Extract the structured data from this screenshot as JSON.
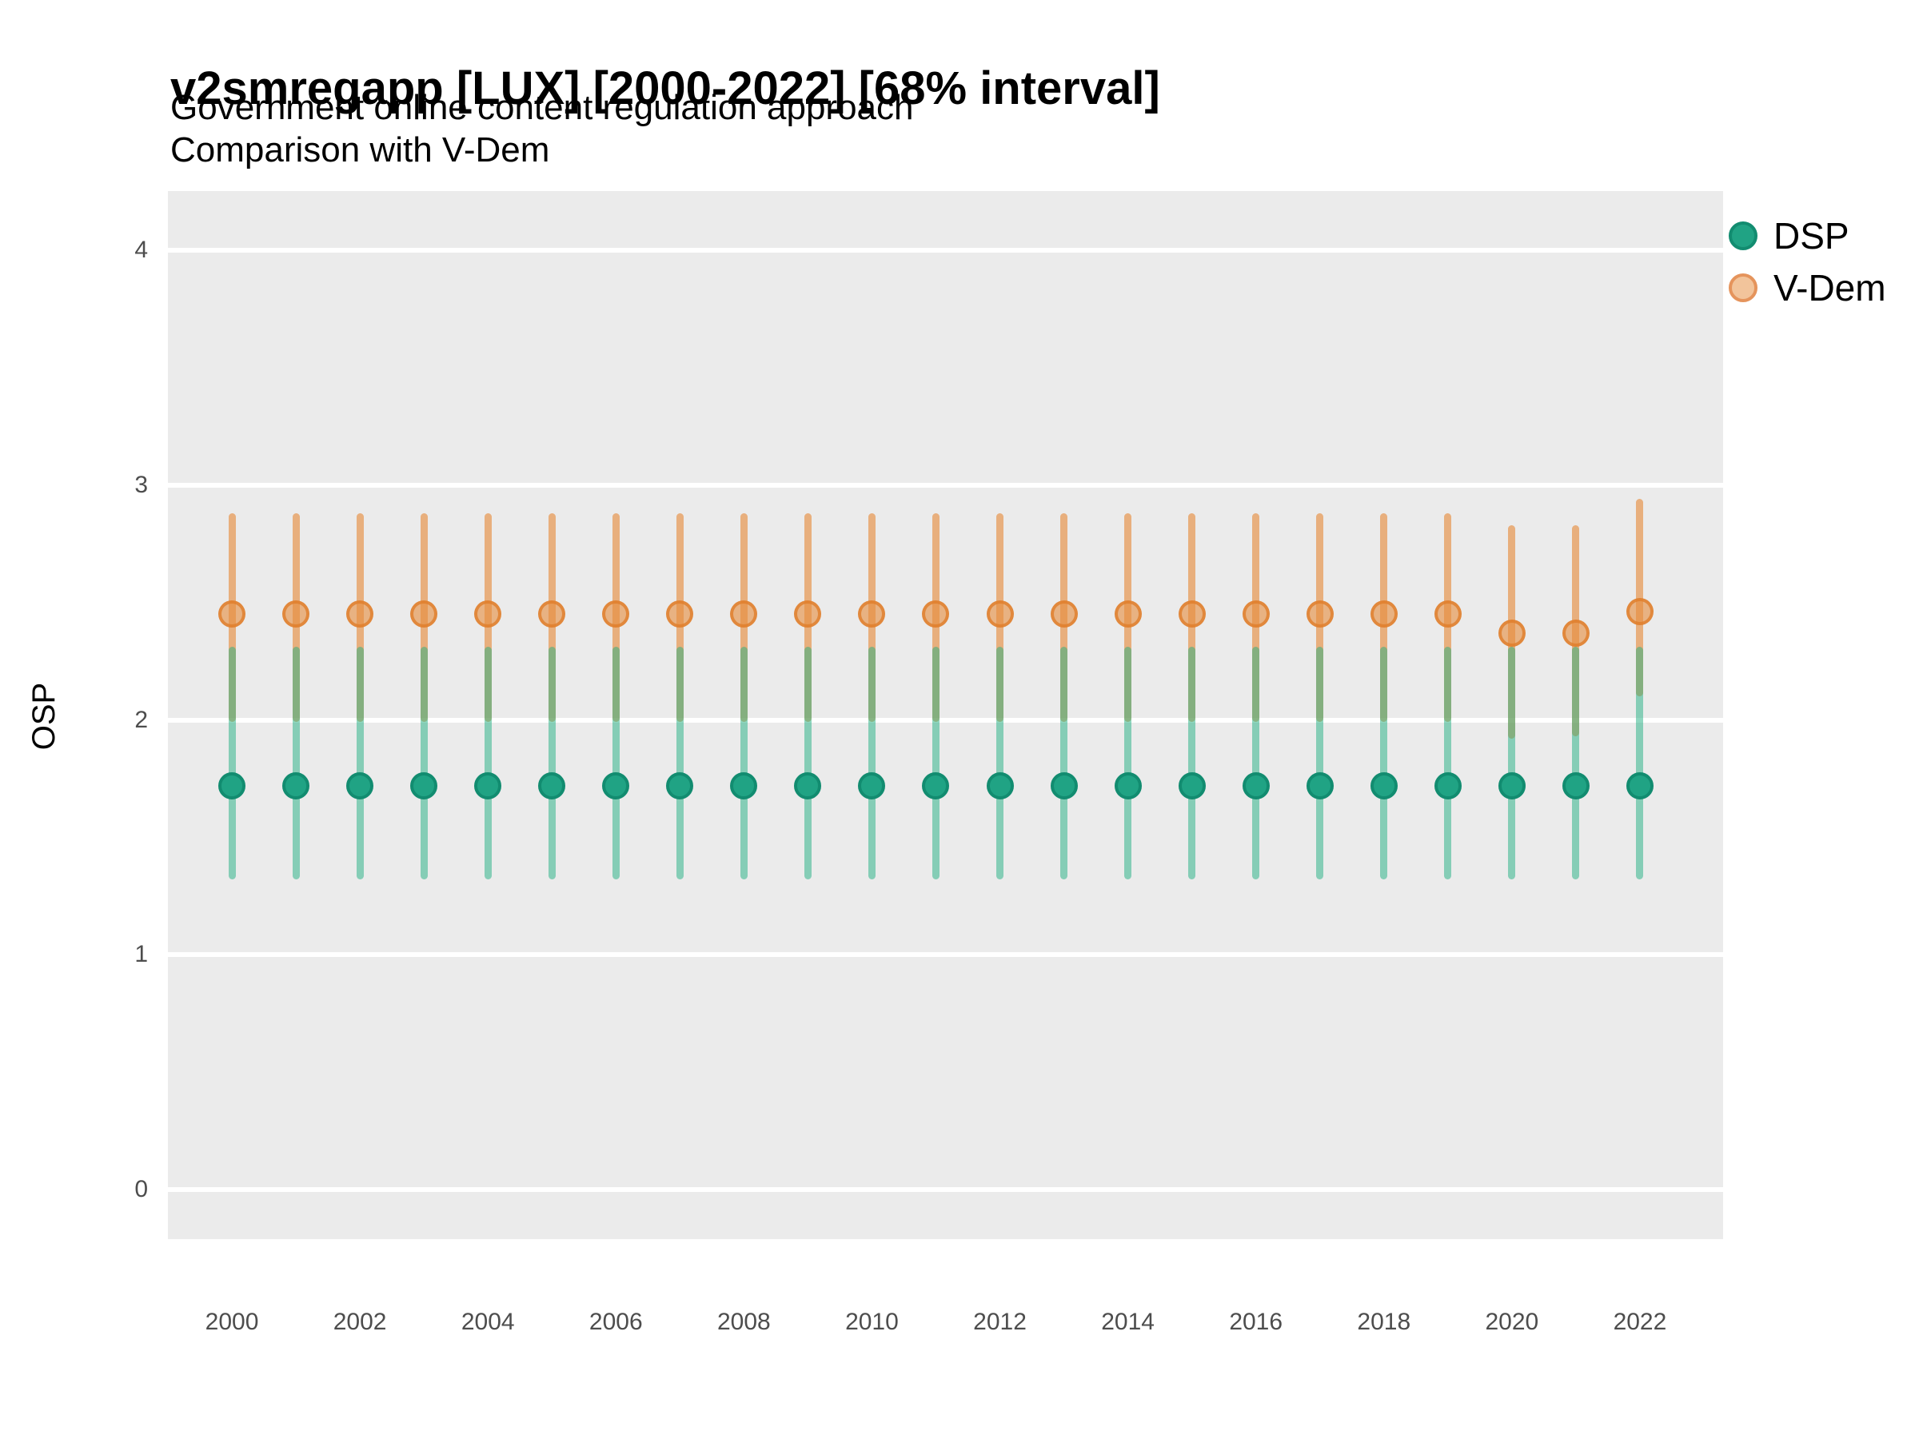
{
  "header": {
    "title": "v2smregapp [LUX] [2000-2022] [68% interval]",
    "subtitle1": "Government online content regulation approach",
    "subtitle2": "Comparison with V-Dem"
  },
  "axes": {
    "y_label": "OSP",
    "y_ticks": [
      0,
      1,
      2,
      3,
      4
    ],
    "x_ticks": [
      2000,
      2002,
      2004,
      2006,
      2008,
      2010,
      2012,
      2014,
      2016,
      2018,
      2020,
      2022
    ],
    "ylim": [
      -0.211,
      4.252
    ],
    "xlim": [
      1999.0,
      2023.3
    ]
  },
  "legend": {
    "position": "top-right",
    "items": [
      {
        "label": "DSP",
        "color": "#20A384"
      },
      {
        "label": "V-Dem",
        "color": "#E5945C"
      }
    ]
  },
  "colors": {
    "panel_background": "#EBEBEB",
    "gridline": "#FFFFFF",
    "dsp_point_fill": "#20A384",
    "dsp_point_stroke": "#128C70",
    "dsp_bar": "rgba(31,175,129,0.5)",
    "vdem_point_fill": "rgba(230,140,60,0.6)",
    "vdem_point_stroke": "rgba(222,125,42,0.8)",
    "vdem_bar": "rgba(230,126,34,0.55)",
    "tick_label": "#4D4D4D"
  },
  "chart_data": {
    "type": "pointrange",
    "title": "v2smregapp [LUX] [2000-2022] [68% interval]",
    "subtitle": [
      "Government online content regulation approach",
      "Comparison with V-Dem"
    ],
    "xlabel": "",
    "ylabel": "OSP",
    "interval": "68%",
    "grid": "horizontal-major-only",
    "legend_position": "top-right",
    "ylim": [
      -0.211,
      4.252
    ],
    "xlim": [
      1999.0,
      2023.3
    ],
    "y_ticks": [
      0,
      1,
      2,
      3,
      4
    ],
    "x_ticks": [
      2000,
      2002,
      2004,
      2006,
      2008,
      2010,
      2012,
      2014,
      2016,
      2018,
      2020,
      2022
    ],
    "x": [
      2000,
      2001,
      2002,
      2003,
      2004,
      2005,
      2006,
      2007,
      2008,
      2009,
      2010,
      2011,
      2012,
      2013,
      2014,
      2015,
      2016,
      2017,
      2018,
      2019,
      2020,
      2021,
      2022
    ],
    "series": [
      {
        "name": "DSP",
        "points": [
          1.72,
          1.72,
          1.72,
          1.72,
          1.72,
          1.72,
          1.72,
          1.72,
          1.72,
          1.72,
          1.72,
          1.72,
          1.72,
          1.72,
          1.72,
          1.72,
          1.72,
          1.72,
          1.72,
          1.72,
          1.72,
          1.72,
          1.72
        ],
        "lower": [
          1.32,
          1.32,
          1.32,
          1.32,
          1.32,
          1.32,
          1.32,
          1.32,
          1.32,
          1.32,
          1.32,
          1.32,
          1.32,
          1.32,
          1.32,
          1.32,
          1.32,
          1.32,
          1.32,
          1.32,
          1.32,
          1.32,
          1.32
        ],
        "upper": [
          2.31,
          2.31,
          2.31,
          2.31,
          2.31,
          2.31,
          2.31,
          2.31,
          2.31,
          2.31,
          2.31,
          2.31,
          2.31,
          2.31,
          2.31,
          2.31,
          2.31,
          2.31,
          2.31,
          2.31,
          2.31,
          2.31,
          2.31
        ]
      },
      {
        "name": "V-Dem",
        "points": [
          2.45,
          2.45,
          2.45,
          2.45,
          2.45,
          2.45,
          2.45,
          2.45,
          2.45,
          2.45,
          2.45,
          2.45,
          2.45,
          2.45,
          2.45,
          2.45,
          2.45,
          2.45,
          2.45,
          2.45,
          2.37,
          2.37,
          2.46
        ],
        "lower": [
          1.99,
          1.99,
          1.99,
          1.99,
          1.99,
          1.99,
          1.99,
          1.99,
          1.99,
          1.99,
          1.99,
          1.99,
          1.99,
          1.99,
          1.99,
          1.99,
          1.99,
          1.99,
          1.99,
          1.99,
          1.92,
          1.93,
          2.1
        ],
        "upper": [
          2.88,
          2.88,
          2.88,
          2.88,
          2.88,
          2.88,
          2.88,
          2.88,
          2.88,
          2.88,
          2.88,
          2.88,
          2.88,
          2.88,
          2.88,
          2.88,
          2.88,
          2.88,
          2.88,
          2.88,
          2.83,
          2.83,
          2.94
        ]
      }
    ]
  }
}
